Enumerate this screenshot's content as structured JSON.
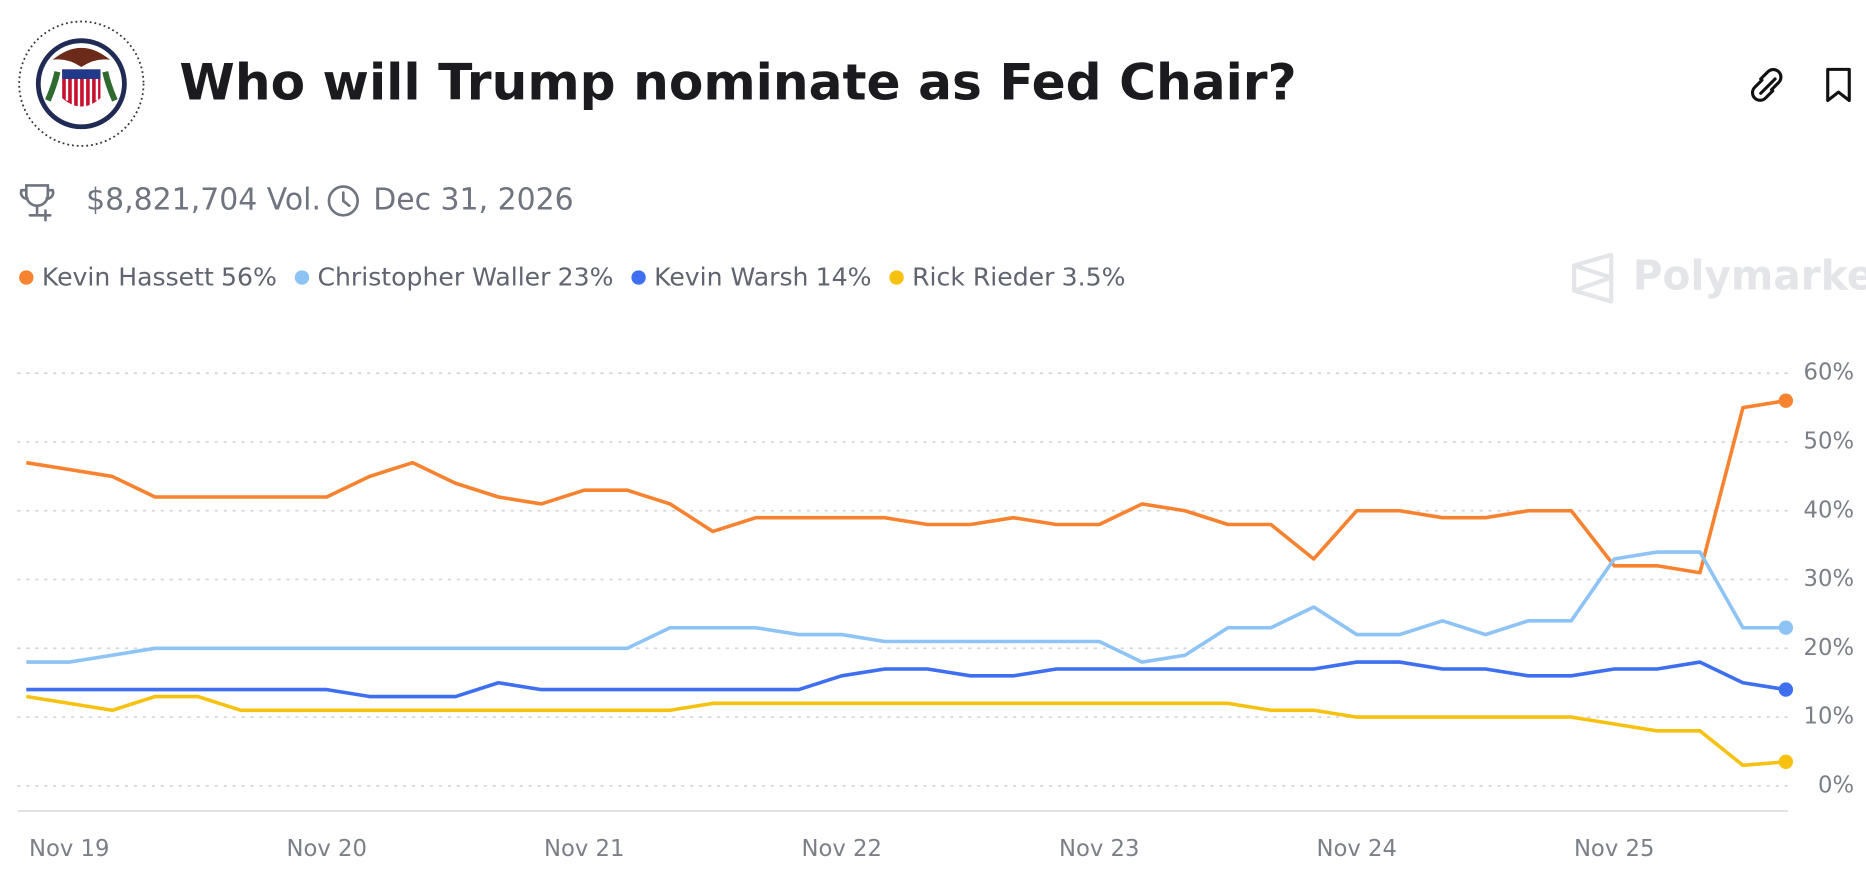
{
  "chart_data": {
    "type": "line",
    "title": "Who will Trump nominate as Fed Chair?",
    "volume": "$8,821,704 Vol.",
    "end_date": "Dec 31, 2026",
    "watermark": "Polymarket",
    "categories": [
      null,
      "Nov 19",
      null,
      null,
      null,
      null,
      null,
      "Nov 20",
      null,
      null,
      null,
      null,
      null,
      "Nov 21",
      null,
      null,
      null,
      null,
      null,
      "Nov 22",
      null,
      null,
      null,
      null,
      null,
      "Nov 23",
      null,
      null,
      null,
      null,
      null,
      "Nov 24",
      null,
      null,
      null,
      null,
      null,
      "Nov 25",
      null,
      null,
      null,
      null
    ],
    "ylim": [
      0,
      60
    ],
    "yticks": [
      {
        "value": 0,
        "label": "0%"
      },
      {
        "value": 10,
        "label": "10%"
      },
      {
        "value": 20,
        "label": "20%"
      },
      {
        "value": 30,
        "label": "30%"
      },
      {
        "value": 40,
        "label": "40%"
      },
      {
        "value": 50,
        "label": "50%"
      },
      {
        "value": 60,
        "label": "60%"
      }
    ],
    "grid": true,
    "series": [
      {
        "name": "Kevin Hassett",
        "color": "#f7822f",
        "current": {
          "value": 56,
          "label": "56%"
        },
        "values": [
          47,
          46,
          45,
          42,
          42,
          42,
          42,
          42,
          45,
          47,
          44,
          42,
          41,
          43,
          43,
          41,
          37,
          39,
          39,
          39,
          39,
          38,
          38,
          39,
          38,
          38,
          41,
          40,
          38,
          38,
          33,
          40,
          40,
          39,
          39,
          40,
          40,
          32,
          32,
          31,
          55,
          56
        ]
      },
      {
        "name": "Christopher Waller",
        "color": "#8ec3f6",
        "current": {
          "value": 23,
          "label": "23%"
        },
        "values": [
          18,
          18,
          19,
          20,
          20,
          20,
          20,
          20,
          20,
          20,
          20,
          20,
          20,
          20,
          20,
          23,
          23,
          23,
          22,
          22,
          21,
          21,
          21,
          21,
          21,
          21,
          18,
          19,
          23,
          23,
          26,
          22,
          22,
          24,
          22,
          24,
          24,
          33,
          34,
          34,
          23,
          23
        ]
      },
      {
        "name": "Kevin Warsh",
        "color": "#3e6ff0",
        "current": {
          "value": 14,
          "label": "14%"
        },
        "values": [
          14,
          14,
          14,
          14,
          14,
          14,
          14,
          14,
          13,
          13,
          13,
          15,
          14,
          14,
          14,
          14,
          14,
          14,
          14,
          16,
          17,
          17,
          16,
          16,
          17,
          17,
          17,
          17,
          17,
          17,
          17,
          18,
          18,
          17,
          17,
          16,
          16,
          17,
          17,
          18,
          15,
          14
        ]
      },
      {
        "name": "Rick Rieder",
        "color": "#f7c10f",
        "current": {
          "value": 3.5,
          "label": "3.5%"
        },
        "values": [
          13,
          12,
          11,
          13,
          13,
          11,
          11,
          11,
          11,
          11,
          11,
          11,
          11,
          11,
          11,
          11,
          12,
          12,
          12,
          12,
          12,
          12,
          12,
          12,
          12,
          12,
          12,
          12,
          12,
          11,
          11,
          10,
          10,
          10,
          10,
          10,
          10,
          9,
          8,
          8,
          3,
          3.5
        ]
      }
    ]
  }
}
